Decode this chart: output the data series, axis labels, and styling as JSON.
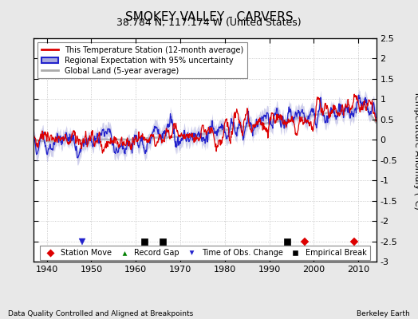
{
  "title": "SMOKEY VALLEY - CARVERS",
  "subtitle": "38.784 N, 117.174 W (United States)",
  "ylabel": "Temperature Anomaly (°C)",
  "footer_left": "Data Quality Controlled and Aligned at Breakpoints",
  "footer_right": "Berkeley Earth",
  "xlim": [
    1937,
    2014
  ],
  "ylim": [
    -3.0,
    2.5
  ],
  "yticks": [
    -3,
    -2.5,
    -2,
    -1.5,
    -1,
    -0.5,
    0,
    0.5,
    1,
    1.5,
    2,
    2.5
  ],
  "xticks": [
    1940,
    1950,
    1960,
    1970,
    1980,
    1990,
    2000,
    2010
  ],
  "background_color": "#e8e8e8",
  "plot_bg_color": "#ffffff",
  "station_color": "#dd0000",
  "regional_color": "#2222cc",
  "regional_fill_color": "#aaaadd",
  "global_color": "#aaaaaa",
  "empirical_break_years": [
    1962,
    1966,
    1994
  ],
  "station_move_years": [
    1998,
    2009
  ],
  "tobs_years": [
    1948
  ],
  "record_gap_years": [],
  "marker_y": -2.5,
  "seed": 12345
}
